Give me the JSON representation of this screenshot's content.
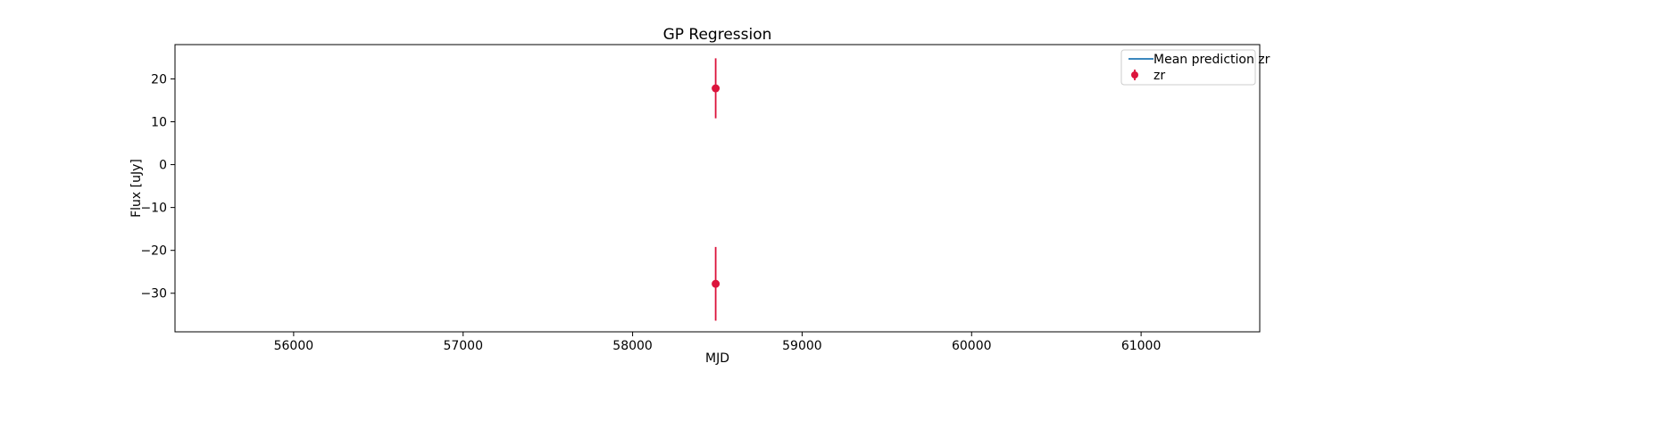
{
  "chart_data": {
    "type": "scatter",
    "title": "GP Regression",
    "xlabel": "MJD",
    "ylabel": "Flux [uJy]",
    "xlim": [
      55300,
      61700
    ],
    "ylim": [
      -39,
      28
    ],
    "x_ticks": [
      56000,
      57000,
      58000,
      59000,
      60000,
      61000
    ],
    "x_tick_labels": [
      "56000",
      "57000",
      "58000",
      "59000",
      "60000",
      "61000"
    ],
    "y_ticks": [
      20,
      10,
      0,
      -10,
      -20,
      -30
    ],
    "y_tick_labels": [
      "20",
      "10",
      "0",
      "−10",
      "−20",
      "−30"
    ],
    "grid": false,
    "legend_position": "top-right",
    "series": [
      {
        "name": "Mean prediction zr",
        "kind": "line",
        "color": "#1f77b4",
        "points": []
      },
      {
        "name": "zr",
        "kind": "errorbar",
        "color": "#dc143c",
        "points": [
          {
            "x": 58490,
            "y": 17.8,
            "yerr": 7.0
          },
          {
            "x": 58490,
            "y": -27.8,
            "yerr": 8.6
          }
        ]
      }
    ]
  }
}
